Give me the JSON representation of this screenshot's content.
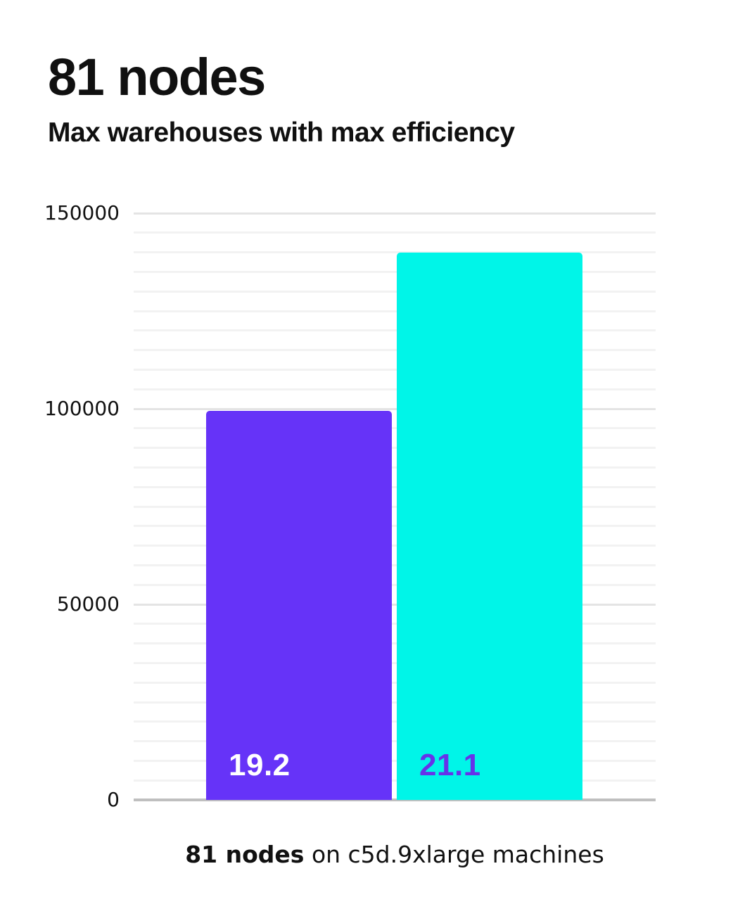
{
  "chart_data": {
    "type": "bar",
    "title": "81 nodes",
    "subtitle": "Max warehouses with max efficiency",
    "categories": [
      "19.2",
      "21.1"
    ],
    "values": [
      99500,
      140000
    ],
    "series": [
      {
        "name": "Max warehouses",
        "values": [
          99500,
          140000
        ]
      }
    ],
    "bar_labels": [
      "19.2",
      "21.1"
    ],
    "bar_colors": [
      "#6633f8",
      "#00f5e8"
    ],
    "bar_label_colors": [
      "#ffffff",
      "#6633e9"
    ],
    "xlabel": "",
    "ylabel": "",
    "ylim": [
      0,
      150000
    ],
    "yticks": [
      150000,
      100000,
      50000,
      0
    ],
    "ytick_labels": [
      "150000",
      "100000",
      "50000",
      "0"
    ],
    "minor_grid_step": 5000,
    "major_grid_step": 50000,
    "grid": "horizontal",
    "legend_position": "none",
    "axis_line_color": "#bfbfbf",
    "major_grid_color": "#e4e4e4",
    "minor_grid_color": "#f2f2f2",
    "text_color": "#111111"
  },
  "caption": {
    "bold": "81 nodes",
    "rest": " on c5d.9xlarge machines"
  }
}
